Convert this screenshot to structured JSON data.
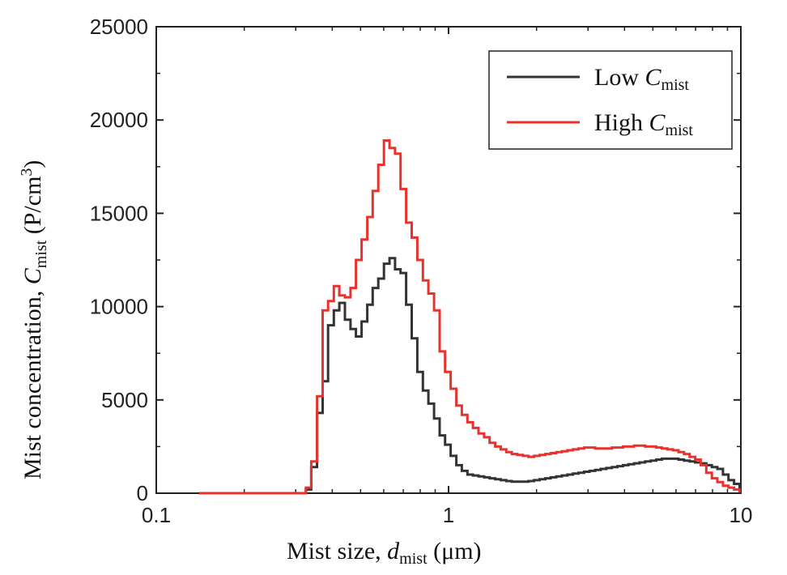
{
  "chart_data": {
    "type": "line",
    "drawstyle": "steps",
    "title": "",
    "xscale": "log",
    "xlim": [
      0.1,
      10
    ],
    "ylim": [
      0,
      25000
    ],
    "xticks": [
      0.1,
      1,
      10
    ],
    "xtick_labels": [
      "0.1",
      "1",
      "10"
    ],
    "yticks": [
      0,
      5000,
      10000,
      15000,
      20000,
      25000
    ],
    "ytick_labels": [
      "0",
      "5000",
      "10000",
      "15000",
      "20000",
      "25000"
    ],
    "xlabel": {
      "main": "Mist size, ",
      "var": "d",
      "sub": "mist",
      "unit": " (μm)"
    },
    "ylabel": {
      "main": "Mist concentration, ",
      "var": "C",
      "sub": "mist",
      "unit_open": " (P/cm",
      "sup": "3",
      "unit_close": ")"
    },
    "legend_position": "top-right",
    "series": [
      {
        "name": "Low C_mist",
        "legend_main": "Low ",
        "legend_var": "C",
        "legend_sub": "mist",
        "color": "#333333",
        "x": [
          0.14,
          0.31,
          0.325,
          0.339,
          0.355,
          0.371,
          0.387,
          0.405,
          0.423,
          0.442,
          0.462,
          0.482,
          0.504,
          0.527,
          0.55,
          0.575,
          0.601,
          0.628,
          0.656,
          0.685,
          0.716,
          0.748,
          0.782,
          0.817,
          0.853,
          0.892,
          0.932,
          0.973,
          1.017,
          1.063,
          1.11,
          1.16,
          1.212,
          1.266,
          1.323,
          1.382,
          1.444,
          1.508,
          1.576,
          1.646,
          1.72,
          1.797,
          1.877,
          1.961,
          2.049,
          2.141,
          2.236,
          2.337,
          2.441,
          2.55,
          2.664,
          2.783,
          2.908,
          3.038,
          3.174,
          3.316,
          3.464,
          3.619,
          3.781,
          3.95,
          4.127,
          4.311,
          4.504,
          4.706,
          4.916,
          5.136,
          5.366,
          5.606,
          5.857,
          6.119,
          6.392,
          6.678,
          6.977,
          7.289,
          7.615,
          7.956,
          8.311,
          8.683,
          9.072,
          9.477,
          9.9
        ],
        "values": [
          0,
          0,
          200,
          1400,
          4300,
          6000,
          9000,
          9800,
          10200,
          9300,
          8800,
          8400,
          9200,
          10100,
          11000,
          11500,
          12300,
          12600,
          12000,
          11800,
          10100,
          8300,
          6500,
          5500,
          4800,
          4000,
          3100,
          2600,
          2000,
          1500,
          1200,
          1000,
          950,
          900,
          850,
          800,
          750,
          700,
          650,
          620,
          620,
          620,
          650,
          700,
          750,
          800,
          850,
          900,
          950,
          1000,
          1050,
          1100,
          1150,
          1200,
          1250,
          1300,
          1350,
          1400,
          1450,
          1500,
          1550,
          1600,
          1650,
          1700,
          1750,
          1800,
          1850,
          1850,
          1850,
          1800,
          1750,
          1700,
          1650,
          1600,
          1500,
          1400,
          1300,
          1000,
          700,
          500,
          300
        ]
      },
      {
        "name": "High C_mist",
        "legend_main": "High ",
        "legend_var": "C",
        "legend_sub": "mist",
        "color": "#e8322d",
        "x": [
          0.14,
          0.31,
          0.325,
          0.339,
          0.355,
          0.371,
          0.387,
          0.405,
          0.423,
          0.442,
          0.462,
          0.482,
          0.504,
          0.527,
          0.55,
          0.575,
          0.601,
          0.628,
          0.656,
          0.685,
          0.716,
          0.748,
          0.782,
          0.817,
          0.853,
          0.892,
          0.932,
          0.973,
          1.017,
          1.063,
          1.11,
          1.16,
          1.212,
          1.266,
          1.323,
          1.382,
          1.444,
          1.508,
          1.576,
          1.646,
          1.72,
          1.797,
          1.877,
          1.961,
          2.049,
          2.141,
          2.236,
          2.337,
          2.441,
          2.55,
          2.664,
          2.783,
          2.908,
          3.038,
          3.174,
          3.316,
          3.464,
          3.619,
          3.781,
          3.95,
          4.127,
          4.311,
          4.504,
          4.706,
          4.916,
          5.136,
          5.366,
          5.606,
          5.857,
          6.119,
          6.392,
          6.678,
          6.977,
          7.289,
          7.615,
          7.956,
          8.311,
          8.683,
          9.072,
          9.477,
          9.9
        ],
        "values": [
          0,
          0,
          300,
          1700,
          5200,
          9800,
          10300,
          11100,
          10600,
          10500,
          11000,
          12500,
          13600,
          14800,
          16200,
          17600,
          18900,
          18500,
          18200,
          16300,
          14500,
          13700,
          12500,
          11400,
          10700,
          9800,
          7600,
          6500,
          5600,
          4700,
          4200,
          3800,
          3500,
          3200,
          3000,
          2700,
          2500,
          2350,
          2200,
          2100,
          2050,
          2000,
          1950,
          2000,
          2050,
          2100,
          2150,
          2200,
          2250,
          2300,
          2350,
          2400,
          2450,
          2450,
          2400,
          2400,
          2400,
          2450,
          2450,
          2500,
          2500,
          2550,
          2550,
          2500,
          2500,
          2450,
          2400,
          2350,
          2300,
          2200,
          2100,
          1950,
          1800,
          1500,
          1100,
          800,
          600,
          400,
          300,
          200,
          100
        ]
      }
    ]
  }
}
